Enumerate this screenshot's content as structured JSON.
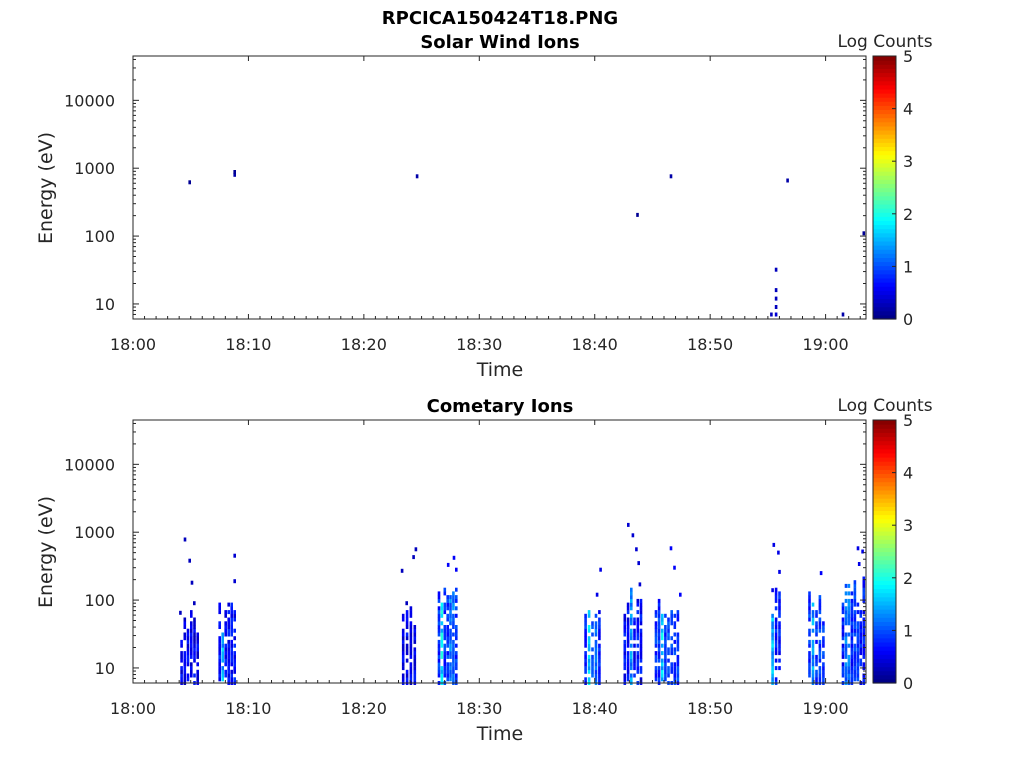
{
  "figure_title": "RPCICA150424T18.PNG",
  "colorbar": {
    "label": "Log Counts",
    "ticks": [
      "0",
      "1",
      "2",
      "3",
      "4",
      "5"
    ],
    "range": [
      0,
      5
    ],
    "colormap": "jet"
  },
  "chart_data": [
    {
      "type": "heatmap",
      "title": "Solar Wind Ions",
      "xlabel": "Time",
      "ylabel": "Energy (eV)",
      "x_ticks": [
        "18:00",
        "18:10",
        "18:20",
        "18:30",
        "18:40",
        "18:50",
        "19:00"
      ],
      "x_range_min": [
        0,
        63.5
      ],
      "y_ticks": [
        "10",
        "100",
        "1000",
        "10000"
      ],
      "y_scale": "log",
      "ylim": [
        6,
        45000
      ],
      "points": [
        {
          "t": 4.9,
          "e": 620,
          "v": 0.1
        },
        {
          "t": 8.8,
          "e": 800,
          "v": 0.2
        },
        {
          "t": 8.8,
          "e": 880,
          "v": 0.1
        },
        {
          "t": 24.6,
          "e": 760,
          "v": 0.2
        },
        {
          "t": 43.7,
          "e": 205,
          "v": 0.1
        },
        {
          "t": 46.6,
          "e": 760,
          "v": 0.2
        },
        {
          "t": 55.3,
          "e": 7,
          "v": 0.3
        },
        {
          "t": 55.7,
          "e": 7,
          "v": 0.4
        },
        {
          "t": 55.7,
          "e": 9,
          "v": 0.3
        },
        {
          "t": 55.7,
          "e": 12,
          "v": 0.3
        },
        {
          "t": 55.7,
          "e": 16,
          "v": 0.3
        },
        {
          "t": 55.7,
          "e": 32,
          "v": 0.3
        },
        {
          "t": 56.7,
          "e": 660,
          "v": 0.2
        },
        {
          "t": 61.5,
          "e": 7,
          "v": 0.2
        },
        {
          "t": 63.3,
          "e": 110,
          "v": 0.1
        }
      ]
    },
    {
      "type": "heatmap",
      "title": "Cometary Ions",
      "xlabel": "Time",
      "ylabel": "Energy (eV)",
      "x_ticks": [
        "18:00",
        "18:10",
        "18:20",
        "18:30",
        "18:40",
        "18:50",
        "19:00"
      ],
      "x_range_min": [
        0,
        63.5
      ],
      "y_ticks": [
        "10",
        "100",
        "1000",
        "10000"
      ],
      "y_scale": "log",
      "ylim": [
        6,
        45000
      ],
      "bursts": [
        {
          "t0": 4.2,
          "t1": 5.6,
          "emin": 6,
          "emax": 50,
          "v": 0.3,
          "core": [],
          "sparse": [
            [
              4.5,
              780
            ],
            [
              4.9,
              380
            ],
            [
              5.1,
              180
            ],
            [
              4.1,
              65
            ],
            [
              5.3,
              90
            ]
          ]
        },
        {
          "t0": 7.5,
          "t1": 8.8,
          "emin": 6,
          "emax": 70,
          "v": 0.4,
          "core": [
            [
              7.6,
              7.9,
              1.6
            ]
          ],
          "sparse": [
            [
              8.8,
              450
            ],
            [
              8.8,
              190
            ]
          ]
        },
        {
          "t0": 23.4,
          "t1": 24.4,
          "emin": 6,
          "emax": 60,
          "v": 0.3,
          "core": [],
          "sparse": [
            [
              24.5,
              560
            ],
            [
              24.3,
              430
            ],
            [
              23.3,
              270
            ],
            [
              23.7,
              90
            ]
          ]
        },
        {
          "t0": 26.5,
          "t1": 28.0,
          "emin": 6,
          "emax": 130,
          "v": 0.6,
          "core": [
            [
              26.6,
              26.9,
              1.9
            ],
            [
              27.4,
              27.8,
              1.3
            ]
          ],
          "sparse": [
            [
              27.8,
              420
            ],
            [
              28.0,
              280
            ],
            [
              27.3,
              330
            ]
          ]
        },
        {
          "t0": 39.2,
          "t1": 40.4,
          "emin": 6,
          "emax": 80,
          "v": 0.5,
          "core": [
            [
              39.3,
              39.5,
              1.8
            ],
            [
              39.8,
              40.2,
              1.2
            ]
          ],
          "sparse": [
            [
              40.2,
              120
            ],
            [
              40.5,
              280
            ]
          ]
        },
        {
          "t0": 42.6,
          "t1": 44.0,
          "emin": 6,
          "emax": 110,
          "v": 0.4,
          "core": [
            [
              43.1,
              43.4,
              1.5
            ]
          ],
          "sparse": [
            [
              42.9,
              1280
            ],
            [
              43.3,
              900
            ],
            [
              43.6,
              560
            ],
            [
              43.8,
              350
            ],
            [
              43.9,
              170
            ]
          ]
        },
        {
          "t0": 45.3,
          "t1": 47.2,
          "emin": 6,
          "emax": 80,
          "v": 0.6,
          "core": [
            [
              45.7,
              46.0,
              1.8
            ],
            [
              46.3,
              46.7,
              1.1
            ]
          ],
          "sparse": [
            [
              46.6,
              580
            ],
            [
              46.9,
              300
            ],
            [
              47.4,
              120
            ]
          ]
        },
        {
          "t0": 55.4,
          "t1": 56.0,
          "emin": 6,
          "emax": 120,
          "v": 0.5,
          "core": [
            [
              55.4,
              55.6,
              1.7
            ]
          ],
          "sparse": [
            [
              55.5,
              650
            ],
            [
              55.9,
              500
            ],
            [
              56.0,
              260
            ],
            [
              55.4,
              140
            ]
          ]
        },
        {
          "t0": 58.6,
          "t1": 59.8,
          "emin": 6,
          "emax": 90,
          "v": 0.6,
          "core": [
            [
              58.8,
              59.1,
              1.5
            ],
            [
              59.3,
              59.6,
              1.0
            ]
          ],
          "sparse": [
            [
              59.6,
              250
            ]
          ]
        },
        {
          "t0": 61.5,
          "t1": 63.3,
          "emin": 6,
          "emax": 160,
          "v": 0.5,
          "core": [
            [
              61.7,
              62.1,
              1.3
            ],
            [
              62.5,
              62.9,
              1.0
            ]
          ],
          "sparse": [
            [
              62.8,
              580
            ],
            [
              62.9,
              340
            ],
            [
              63.2,
              520
            ]
          ]
        }
      ]
    }
  ]
}
